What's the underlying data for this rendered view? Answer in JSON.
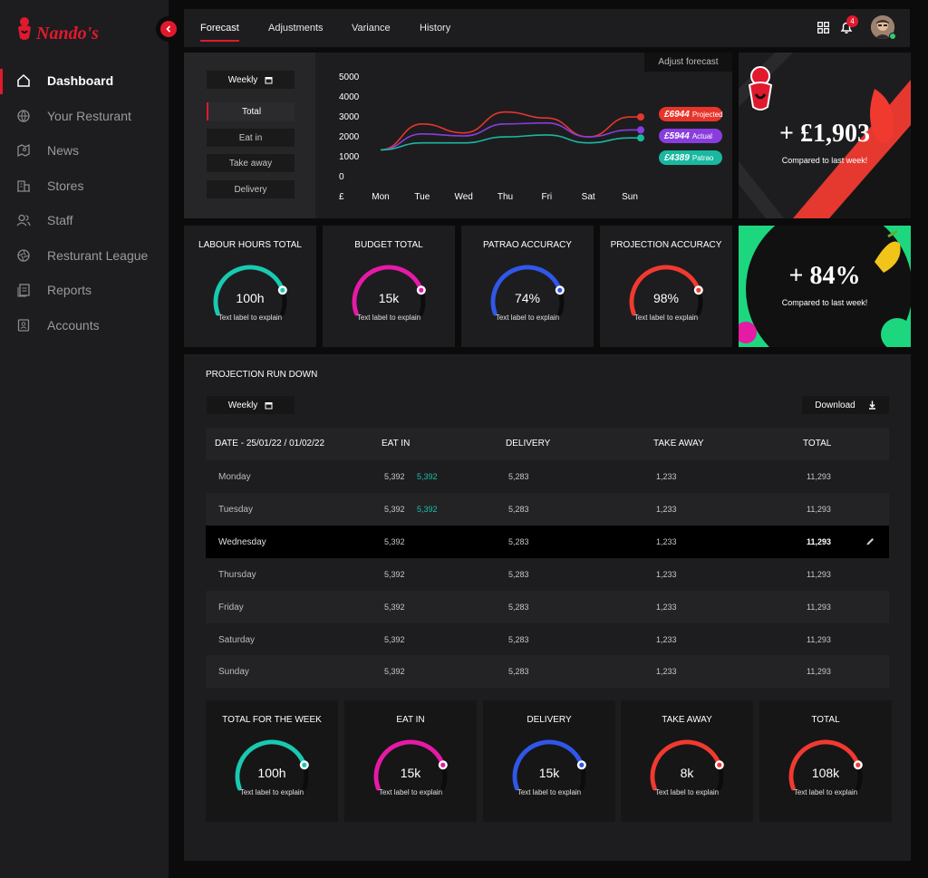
{
  "sidebar": {
    "logo_text": "Nando's",
    "items": [
      {
        "label": "Dashboard"
      },
      {
        "label": "Your Resturant"
      },
      {
        "label": "News"
      },
      {
        "label": "Stores"
      },
      {
        "label": "Staff"
      },
      {
        "label": "Resturant League"
      },
      {
        "label": "Reports"
      },
      {
        "label": "Accounts"
      }
    ]
  },
  "topbar": {
    "tabs": [
      {
        "label": "Forecast"
      },
      {
        "label": "Adjustments"
      },
      {
        "label": "Variance"
      },
      {
        "label": "History"
      }
    ],
    "notification_count": "4"
  },
  "forecast": {
    "period_select": "Weekly",
    "filters": [
      {
        "label": "Total"
      },
      {
        "label": "Eat in"
      },
      {
        "label": "Take away"
      },
      {
        "label": "Delivery"
      }
    ],
    "adjust_label": "Adjust forecast",
    "legend": [
      {
        "value": "£6944",
        "name": "Projected",
        "color": "#e8352b"
      },
      {
        "value": "£5944",
        "name": "Actual",
        "color": "#8a3dde"
      },
      {
        "value": "£4389",
        "name": "Patrao",
        "color": "#19b8a0"
      }
    ]
  },
  "chart_data": {
    "type": "line",
    "categories": [
      "Mon",
      "Tue",
      "Wed",
      "Thu",
      "Fri",
      "Sat",
      "Sun"
    ],
    "y_ticks": [
      "5000",
      "4000",
      "3000",
      "2000",
      "1000",
      "0",
      "£"
    ],
    "ylim": [
      0,
      5000
    ],
    "series": [
      {
        "name": "Projected",
        "color": "#e8352b",
        "values": [
          1300,
          2600,
          2150,
          3200,
          2900,
          1950,
          2950
        ]
      },
      {
        "name": "Actual",
        "color": "#8a3dde",
        "values": [
          1300,
          2100,
          2000,
          2600,
          2650,
          1950,
          2300
        ]
      },
      {
        "name": "Patrao",
        "color": "#19b8a0",
        "values": [
          1300,
          1650,
          1650,
          1950,
          2050,
          1650,
          1900
        ]
      }
    ],
    "grid": false
  },
  "promo1": {
    "value": "+ £1,903",
    "caption": "Compared to last week!"
  },
  "promo2": {
    "value": "+ 84%",
    "caption": "Compared to last week!"
  },
  "kpis": [
    {
      "title": "LABOUR HOURS TOTAL",
      "value": "100h",
      "sub": "Text label to explain",
      "color": "#19c9b0",
      "fraction": 0.82
    },
    {
      "title": "BUDGET TOTAL",
      "value": "15k",
      "sub": "Text label to explain",
      "color": "#e51aa5",
      "fraction": 0.82
    },
    {
      "title": "PATRAO ACCURACY",
      "value": "74%",
      "sub": "Text label to explain",
      "color": "#3157e8",
      "fraction": 0.82
    },
    {
      "title": "PROJECTION ACCURACY",
      "value": "98%",
      "sub": "Text label to explain",
      "color": "#f03a30",
      "fraction": 0.82
    }
  ],
  "rundown": {
    "title": "PROJECTION RUN DOWN",
    "period_select": "Weekly",
    "download_label": "Download",
    "columns": [
      "DATE - 25/01/22 / 01/02/22",
      "EAT IN",
      "DELIVERY",
      "TAKE AWAY",
      "TOTAL"
    ],
    "rows": [
      {
        "day": "Monday",
        "eat_in": "5,392",
        "eat_in_adj": "5,392",
        "delivery": "5,283",
        "take_away": "1,233",
        "total": "11,293"
      },
      {
        "day": "Tuesday",
        "eat_in": "5,392",
        "eat_in_adj": "5,392",
        "delivery": "5,283",
        "take_away": "1,233",
        "total": "11,293"
      },
      {
        "day": "Wednesday",
        "eat_in": "5,392",
        "eat_in_adj": "",
        "delivery": "5,283",
        "take_away": "1,233",
        "total": "11,293"
      },
      {
        "day": "Thursday",
        "eat_in": "5,392",
        "eat_in_adj": "",
        "delivery": "5,283",
        "take_away": "1,233",
        "total": "11,293"
      },
      {
        "day": "Friday",
        "eat_in": "5,392",
        "eat_in_adj": "",
        "delivery": "5,283",
        "take_away": "1,233",
        "total": "11,293"
      },
      {
        "day": "Saturday",
        "eat_in": "5,392",
        "eat_in_adj": "",
        "delivery": "5,283",
        "take_away": "1,233",
        "total": "11,293"
      },
      {
        "day": "Sunday",
        "eat_in": "5,392",
        "eat_in_adj": "",
        "delivery": "5,283",
        "take_away": "1,233",
        "total": "11,293"
      }
    ],
    "summary": [
      {
        "title": "TOTAL FOR THE WEEK",
        "value": "100h",
        "sub": "Text label to explain",
        "color": "#19c9b0",
        "fraction": 0.82
      },
      {
        "title": "EAT IN",
        "value": "15k",
        "sub": "Text label to explain",
        "color": "#e51aa5",
        "fraction": 0.82
      },
      {
        "title": "DELIVERY",
        "value": "15k",
        "sub": "Text label to explain",
        "color": "#3157e8",
        "fraction": 0.82
      },
      {
        "title": "TAKE AWAY",
        "value": "8k",
        "sub": "Text label to explain",
        "color": "#f03a30",
        "fraction": 0.82
      },
      {
        "title": "TOTAL",
        "value": "108k",
        "sub": "Text label to explain",
        "color": "#f03a30",
        "fraction": 0.82
      }
    ]
  }
}
